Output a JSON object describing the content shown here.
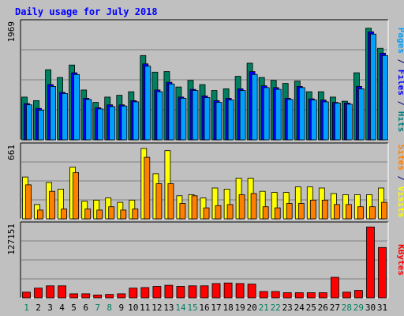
{
  "chart_data": {
    "type": "bar",
    "title": "Daily usage for July 2018",
    "categories": [
      "1",
      "2",
      "3",
      "4",
      "5",
      "6",
      "7",
      "8",
      "9",
      "10",
      "11",
      "12",
      "13",
      "14",
      "15",
      "16",
      "17",
      "18",
      "19",
      "20",
      "21",
      "22",
      "23",
      "24",
      "25",
      "26",
      "27",
      "28",
      "29",
      "30",
      "31"
    ],
    "weekend_categories": [
      "1",
      "7",
      "8",
      "14",
      "15",
      "21",
      "22",
      "28",
      "29"
    ],
    "panels": [
      {
        "id": "hits",
        "max_label": "1969",
        "ylim": [
          0,
          1969
        ],
        "grid": true,
        "legend": [
          {
            "label": "Pages",
            "color": "#00a0ff"
          },
          {
            "label": " / ",
            "color": "#000080"
          },
          {
            "label": "Files",
            "color": "#0000ff"
          },
          {
            "label": " / ",
            "color": "#000080"
          },
          {
            "label": "Hits",
            "color": "#008080"
          }
        ],
        "series": [
          {
            "name": "Hits",
            "color": "#008060",
            "values": [
              720,
              660,
              1180,
              1050,
              1260,
              840,
              630,
              720,
              750,
              810,
              1420,
              1140,
              1150,
              890,
              1000,
              930,
              830,
              860,
              1070,
              1290,
              1050,
              1000,
              950,
              990,
              810,
              810,
              720,
              650,
              1130,
              1880,
              1540
            ]
          },
          {
            "name": "Files",
            "color": "#0000ff",
            "values": [
              610,
              530,
              930,
              800,
              1130,
              700,
              540,
              590,
              590,
              660,
              1280,
              840,
              970,
              720,
              850,
              740,
              660,
              700,
              860,
              1150,
              910,
              880,
              700,
              900,
              690,
              670,
              630,
              620,
              900,
              1820,
              1460
            ]
          },
          {
            "name": "Pages",
            "color": "#00a0ff",
            "values": [
              590,
              500,
              900,
              780,
              1100,
              680,
              520,
              560,
              570,
              640,
              1240,
              810,
              940,
              700,
              830,
              710,
              630,
              670,
              830,
              1100,
              880,
              850,
              680,
              880,
              670,
              640,
              620,
              600,
              860,
              1780,
              1420
            ]
          }
        ]
      },
      {
        "id": "visits",
        "max_label": "661",
        "ylim": [
          0,
          661
        ],
        "grid": true,
        "legend": [
          {
            "label": "Sites",
            "color": "#ff8000"
          },
          {
            "label": " / ",
            "color": "#000080"
          },
          {
            "label": "Visits",
            "color": "#ffff00"
          }
        ],
        "series": [
          {
            "name": "Visits",
            "color": "#ffff00",
            "values": [
              380,
              130,
              330,
              270,
              470,
              160,
              170,
              190,
              150,
              170,
              640,
              410,
              620,
              210,
              220,
              190,
              280,
              270,
              370,
              370,
              250,
              240,
              240,
              290,
              290,
              280,
              230,
              220,
              220,
              220,
              280
            ]
          },
          {
            "name": "Sites",
            "color": "#ff8000",
            "values": [
              310,
              80,
              250,
              90,
              420,
              90,
              80,
              110,
              80,
              90,
              560,
              320,
              320,
              140,
              210,
              100,
              120,
              130,
              220,
              230,
              110,
              100,
              140,
              140,
              170,
              170,
              130,
              130,
              110,
              110,
              150
            ]
          }
        ]
      },
      {
        "id": "kbytes",
        "max_label": "127151",
        "ylim": [
          0,
          127151
        ],
        "grid": true,
        "legend": [
          {
            "label": "KBytes",
            "color": "#ff0000"
          }
        ],
        "series": [
          {
            "name": "KBytes",
            "color": "#ff0000",
            "values": [
              10000,
              17000,
              21000,
              21000,
              7000,
              7000,
              5000,
              6000,
              7000,
              17000,
              18000,
              20000,
              22000,
              20000,
              21000,
              21000,
              25000,
              26000,
              25000,
              24000,
              11000,
              11000,
              9000,
              9000,
              9000,
              9000,
              36000,
              10000,
              13000,
              124000,
              88000
            ]
          }
        ]
      }
    ]
  }
}
